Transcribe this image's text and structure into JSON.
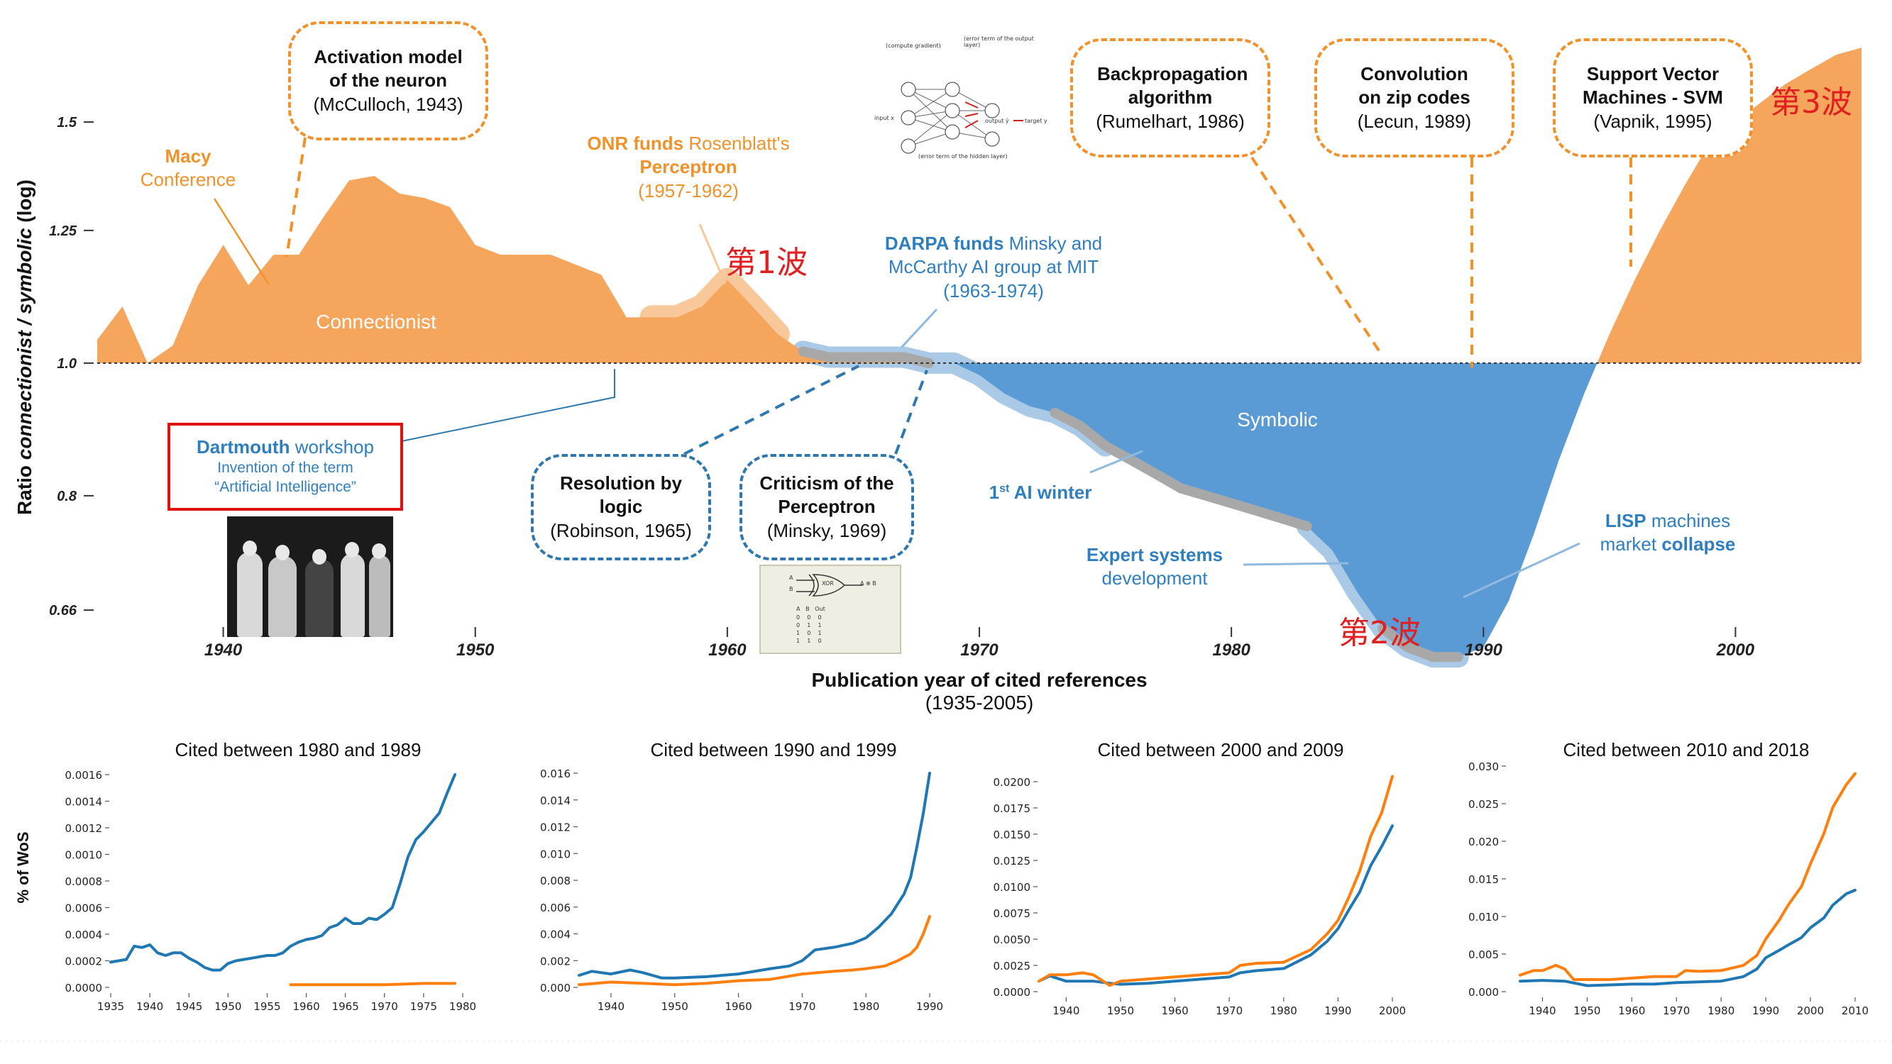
{
  "chart_data": [
    {
      "type": "area",
      "xlabel": "Publication year of cited references",
      "xlabel_sub": "(1935-2005)",
      "ylabel": "Ratio connectionist / symbolic (log)",
      "ylabel_parts": [
        "Ratio ",
        "connectionist / symbolic",
        " (log)"
      ],
      "y_scale": "log",
      "xlim": [
        1935,
        2005
      ],
      "ylim": [
        0.6,
        1.82
      ],
      "x_ticks": [
        "1940",
        "1950",
        "1960",
        "1970",
        "1980",
        "1990",
        "2000"
      ],
      "y_ticks": [
        "1.5",
        "1.25",
        "1.0",
        "0.8",
        "0.66"
      ],
      "baseline": 1.0,
      "region_labels": {
        "above": "Connectionist",
        "below": "Symbolic"
      },
      "series": [
        {
          "x": [
            1935,
            1936,
            1937,
            1938,
            1939,
            1940,
            1941,
            1942,
            1943,
            1944,
            1945,
            1946,
            1947,
            1948,
            1949,
            1950,
            1951,
            1952,
            1953,
            1954,
            1955,
            1956,
            1957,
            1958,
            1959,
            1960,
            1961,
            1962,
            1963,
            1964,
            1965,
            1966,
            1967,
            1968,
            1969,
            1970,
            1971,
            1972,
            1973,
            1974,
            1975,
            1976,
            1977,
            1978,
            1979,
            1980,
            1981,
            1982,
            1983,
            1984,
            1985,
            1986,
            1987,
            1988,
            1989,
            1990,
            1991,
            1992,
            1993,
            1994,
            1995,
            1996,
            1997,
            1998,
            1999,
            2000,
            2001,
            2002,
            2003,
            2004,
            2005
          ],
          "y": [
            1.04,
            1.1,
            1.0,
            1.03,
            1.14,
            1.22,
            1.14,
            1.2,
            1.2,
            1.28,
            1.36,
            1.37,
            1.33,
            1.32,
            1.3,
            1.22,
            1.2,
            1.2,
            1.2,
            1.18,
            1.16,
            1.08,
            1.08,
            1.08,
            1.1,
            1.15,
            1.1,
            1.05,
            1.02,
            1.01,
            1.01,
            1.01,
            1.01,
            1.0,
            1.0,
            0.98,
            0.95,
            0.93,
            0.92,
            0.9,
            0.87,
            0.85,
            0.83,
            0.81,
            0.8,
            0.79,
            0.78,
            0.77,
            0.76,
            0.73,
            0.68,
            0.64,
            0.62,
            0.61,
            0.61,
            0.62,
            0.67,
            0.75,
            0.85,
            0.95,
            1.05,
            1.15,
            1.25,
            1.35,
            1.45,
            1.5,
            1.55,
            1.6,
            1.64,
            1.68,
            1.7
          ]
        }
      ]
    },
    {
      "type": "line",
      "title": "Cited between 1980 and 1989",
      "xlim": [
        1935,
        1980
      ],
      "ylim": [
        0,
        0.0016
      ],
      "x_ticks": [
        "1935",
        "1940",
        "1945",
        "1950",
        "1955",
        "1960",
        "1965",
        "1970",
        "1975",
        "1980"
      ],
      "y_ticks": [
        "0.0000",
        "0.0002",
        "0.0004",
        "0.0006",
        "0.0008",
        "0.0010",
        "0.0012",
        "0.0014",
        "0.0016"
      ],
      "series": [
        {
          "color": "#1f77b4",
          "x": [
            1935,
            1936,
            1937,
            1938,
            1939,
            1940,
            1941,
            1942,
            1943,
            1944,
            1945,
            1946,
            1947,
            1948,
            1949,
            1950,
            1951,
            1952,
            1953,
            1954,
            1955,
            1956,
            1957,
            1958,
            1959,
            1960,
            1961,
            1962,
            1963,
            1964,
            1965,
            1966,
            1967,
            1968,
            1969,
            1970,
            1971,
            1972,
            1973,
            1974,
            1975,
            1976,
            1977,
            1978,
            1979
          ],
          "y": [
            0.00019,
            0.0002,
            0.00021,
            0.00031,
            0.0003,
            0.00032,
            0.00026,
            0.00024,
            0.00026,
            0.00026,
            0.00022,
            0.00019,
            0.00015,
            0.00013,
            0.00013,
            0.00018,
            0.0002,
            0.00021,
            0.00022,
            0.00023,
            0.00024,
            0.00024,
            0.00026,
            0.00031,
            0.00034,
            0.00036,
            0.00037,
            0.00039,
            0.00045,
            0.00047,
            0.00052,
            0.00048,
            0.00048,
            0.00052,
            0.00051,
            0.00055,
            0.0006,
            0.00078,
            0.00098,
            0.00111,
            0.00117,
            0.00124,
            0.00131,
            0.00146,
            0.0016
          ]
        },
        {
          "color": "#ff7f0e",
          "x": [
            1958,
            1962,
            1966,
            1970,
            1975,
            1979
          ],
          "y": [
            2e-05,
            2e-05,
            2e-05,
            2e-05,
            3e-05,
            3e-05
          ]
        }
      ]
    },
    {
      "type": "line",
      "title": "Cited between 1990 and 1999",
      "xlim": [
        1935,
        1990
      ],
      "ylim": [
        0,
        0.016
      ],
      "x_ticks": [
        "1940",
        "1950",
        "1960",
        "1970",
        "1980",
        "1990"
      ],
      "y_ticks": [
        "0.000",
        "0.002",
        "0.004",
        "0.006",
        "0.008",
        "0.010",
        "0.012",
        "0.014",
        "0.016"
      ],
      "series": [
        {
          "color": "#1f77b4",
          "x": [
            1935,
            1937,
            1940,
            1943,
            1945,
            1948,
            1950,
            1955,
            1960,
            1965,
            1968,
            1970,
            1972,
            1975,
            1978,
            1980,
            1982,
            1984,
            1986,
            1987,
            1988,
            1989,
            1990
          ],
          "y": [
            0.0009,
            0.0012,
            0.001,
            0.0013,
            0.0011,
            0.0007,
            0.0007,
            0.0008,
            0.001,
            0.0014,
            0.0016,
            0.002,
            0.0028,
            0.003,
            0.0033,
            0.0037,
            0.0045,
            0.0055,
            0.007,
            0.0082,
            0.0105,
            0.013,
            0.016
          ]
        },
        {
          "color": "#ff7f0e",
          "x": [
            1935,
            1940,
            1945,
            1950,
            1955,
            1960,
            1965,
            1970,
            1975,
            1978,
            1980,
            1983,
            1985,
            1987,
            1988,
            1989,
            1990
          ],
          "y": [
            0.0002,
            0.0004,
            0.0003,
            0.0002,
            0.0003,
            0.0005,
            0.0006,
            0.001,
            0.0012,
            0.0013,
            0.0014,
            0.0016,
            0.002,
            0.0025,
            0.003,
            0.004,
            0.0053
          ]
        }
      ]
    },
    {
      "type": "line",
      "title": "Cited between 2000 and 2009",
      "xlim": [
        1935,
        2000
      ],
      "ylim": [
        0,
        0.02
      ],
      "x_ticks": [
        "1940",
        "1950",
        "1960",
        "1970",
        "1980",
        "1990",
        "2000"
      ],
      "y_ticks": [
        "0.0000",
        "0.0025",
        "0.0050",
        "0.0075",
        "0.0100",
        "0.0125",
        "0.0150",
        "0.0175",
        "0.0200"
      ],
      "series": [
        {
          "color": "#1f77b4",
          "x": [
            1935,
            1937,
            1940,
            1945,
            1948,
            1950,
            1955,
            1960,
            1965,
            1970,
            1972,
            1975,
            1980,
            1985,
            1988,
            1990,
            1992,
            1994,
            1996,
            1998,
            2000
          ],
          "y": [
            0.001,
            0.0015,
            0.001,
            0.001,
            0.0008,
            0.0007,
            0.0008,
            0.001,
            0.0012,
            0.0014,
            0.0018,
            0.002,
            0.0022,
            0.0035,
            0.0048,
            0.006,
            0.0078,
            0.0095,
            0.012,
            0.0138,
            0.0158
          ]
        },
        {
          "color": "#ff7f0e",
          "x": [
            1935,
            1937,
            1940,
            1943,
            1945,
            1948,
            1950,
            1955,
            1960,
            1965,
            1970,
            1972,
            1975,
            1980,
            1985,
            1988,
            1990,
            1992,
            1994,
            1996,
            1998,
            2000
          ],
          "y": [
            0.001,
            0.0016,
            0.0016,
            0.0018,
            0.0016,
            0.0006,
            0.001,
            0.0012,
            0.0014,
            0.0016,
            0.0018,
            0.0025,
            0.0027,
            0.0028,
            0.004,
            0.0055,
            0.0068,
            0.009,
            0.0115,
            0.0148,
            0.017,
            0.0205
          ]
        }
      ]
    },
    {
      "type": "line",
      "title": "Cited between 2010 and 2018",
      "xlim": [
        1935,
        2010
      ],
      "ylim": [
        0,
        0.03
      ],
      "x_ticks": [
        "1940",
        "1950",
        "1960",
        "1970",
        "1980",
        "1990",
        "2000",
        "2010"
      ],
      "y_ticks": [
        "0.000",
        "0.005",
        "0.010",
        "0.015",
        "0.020",
        "0.025",
        "0.030"
      ],
      "series": [
        {
          "color": "#1f77b4",
          "x": [
            1935,
            1940,
            1945,
            1950,
            1955,
            1960,
            1965,
            1970,
            1975,
            1980,
            1985,
            1988,
            1990,
            1993,
            1995,
            1998,
            2000,
            2003,
            2005,
            2008,
            2010
          ],
          "y": [
            0.0014,
            0.0015,
            0.0014,
            0.0008,
            0.0009,
            0.001,
            0.001,
            0.0012,
            0.0013,
            0.0014,
            0.002,
            0.003,
            0.0045,
            0.0055,
            0.0062,
            0.0072,
            0.0085,
            0.0098,
            0.0115,
            0.013,
            0.0135
          ]
        },
        {
          "color": "#ff7f0e",
          "x": [
            1935,
            1938,
            1940,
            1943,
            1945,
            1947,
            1950,
            1955,
            1960,
            1965,
            1970,
            1972,
            1975,
            1980,
            1985,
            1988,
            1990,
            1993,
            1995,
            1998,
            2000,
            2003,
            2005,
            2008,
            2010
          ],
          "y": [
            0.0022,
            0.0028,
            0.0028,
            0.0035,
            0.003,
            0.0016,
            0.0016,
            0.0016,
            0.0018,
            0.002,
            0.002,
            0.0028,
            0.0027,
            0.0028,
            0.0035,
            0.0048,
            0.007,
            0.0095,
            0.0115,
            0.014,
            0.017,
            0.021,
            0.0245,
            0.0275,
            0.029
          ]
        }
      ]
    }
  ],
  "sub_ylabel": "% of WoS",
  "annotations": {
    "mcculloch": {
      "title": "Activation model of the neuron",
      "cite": "(McCulloch, 1943)"
    },
    "backprop": {
      "title": "Backpropagation algorithm",
      "cite": "(Rumelhart, 1986)"
    },
    "lecun": {
      "title": "Convolution on zip codes",
      "cite": "(Lecun, 1989)"
    },
    "svm": {
      "title": "Support Vector Machines - SVM",
      "cite": "(Vapnik, 1995)"
    },
    "robinson": {
      "title": "Resolution by logic",
      "cite": "(Robinson, 1965)"
    },
    "minsky": {
      "title": "Criticism of the Perceptron",
      "cite": "(Minsky, 1969)"
    },
    "macy": {
      "line1": "Macy",
      "line2": "Conference"
    },
    "onr": {
      "bold": "ONR funds",
      "rest": " Rosenblatt's",
      "line2": "Perceptron",
      "line3": "(1957-1962)"
    },
    "darpa": {
      "bold": "DARPA funds",
      "rest": " Minsky and",
      "line2": "McCarthy AI group at MIT",
      "line3": "(1963-1974)"
    },
    "dartmouth": {
      "bold": "Dartmouth",
      "rest": " workshop",
      "line2": "Invention of the term",
      "line3": "“Artificial Intelligence”"
    },
    "winter": {
      "pre": "1",
      "sup": "st",
      "post": " AI winter"
    },
    "expert": {
      "bold": "Expert systems",
      "line2": "development"
    },
    "lisp": {
      "bold": "LISP",
      "rest": " machines",
      "line2": "market ",
      "bold2": "collapse"
    },
    "wave1": "第1波",
    "wave2": "第2波",
    "wave3": "第3波"
  },
  "xor_diagram": {
    "gate_label": "XOR",
    "a": "A",
    "b": "B",
    "out": "A ⊕ B",
    "table_header": [
      "A",
      "B",
      "Out"
    ],
    "table_rows": [
      [
        "0",
        "0",
        "0"
      ],
      [
        "0",
        "1",
        "1"
      ],
      [
        "1",
        "0",
        "1"
      ],
      [
        "1",
        "1",
        "0"
      ]
    ]
  },
  "nn_diagram": {
    "input_label": "input x",
    "output_label": "output ŷ",
    "target_label": "target y",
    "top_label": "(error term of the output layer)",
    "bottom_label": "(error term of the hidden layer)",
    "grad_label": "(compute gradient)"
  },
  "colors": {
    "connectionist": "#f5a55c",
    "symbolic": "#5b9bd5",
    "orange": "#f0922b",
    "blue": "#2f7fc0",
    "red": "#e02020",
    "gray_band": "#a8a8a8",
    "light_blue_band": "#a9c9e6",
    "light_orange_band": "#f9c89a"
  }
}
